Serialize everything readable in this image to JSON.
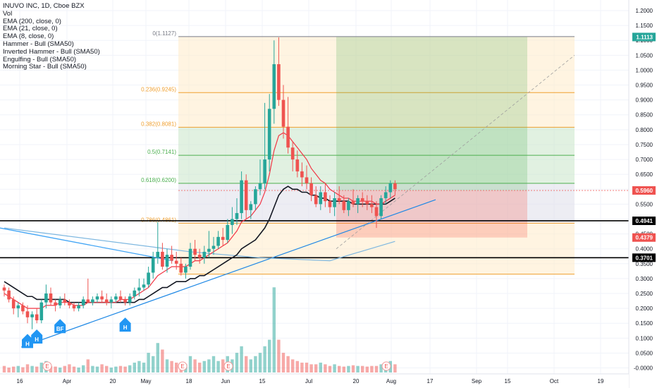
{
  "legend": {
    "title": "INUVO INC, 1D, Cboe BZX",
    "items": [
      "Vol",
      "EMA (200, close, 0)",
      "EMA (21, close, 0)",
      "EMA (8, close, 0)",
      "Hammer - Bull (SMA50)",
      "Inverted Hammer - Bull (SMA50)",
      "Engulfing - Bull (SMA50)",
      "Morning Star - Bull (SMA50)"
    ]
  },
  "colors": {
    "up": "#26a69a",
    "down": "#ef5350",
    "ema8": "#f23645",
    "ema21": "#131722",
    "ema200": "#7fb8e0",
    "trendline": "#2962ff",
    "fib_line": "#f0a030",
    "profit": "#4caf50",
    "loss": "#f44336",
    "marker": "#2196f3"
  },
  "chart_data": {
    "type": "candlestick",
    "title": "INUVO INC, 1D, Cboe BZX",
    "ylim": [
      -0.02,
      1.22
    ],
    "y_ticks": [
      "1.2000",
      "1.1500",
      "1.1000",
      "1.0500",
      "1.0000",
      "0.9500",
      "0.9000",
      "0.8500",
      "0.8000",
      "0.7500",
      "0.7000",
      "0.6500",
      "0.6000",
      "0.5500",
      "0.5000",
      "0.4500",
      "0.4000",
      "0.3500",
      "0.3000",
      "0.2500",
      "0.2000",
      "0.1500",
      "0.1000",
      "0.0500",
      "0.0000"
    ],
    "x_ticks": [
      "16",
      "Apr",
      "20",
      "May",
      "18",
      "Jun",
      "15",
      "Jul",
      "20",
      "Aug",
      "17",
      "Sep",
      "15",
      "Oct",
      "19"
    ],
    "ohlc": [
      [
        0.27,
        0.28,
        0.24,
        0.26
      ],
      [
        0.26,
        0.27,
        0.22,
        0.23
      ],
      [
        0.23,
        0.24,
        0.18,
        0.2
      ],
      [
        0.2,
        0.22,
        0.17,
        0.21
      ],
      [
        0.21,
        0.22,
        0.18,
        0.19
      ],
      [
        0.19,
        0.21,
        0.15,
        0.17
      ],
      [
        0.17,
        0.19,
        0.13,
        0.18
      ],
      [
        0.18,
        0.2,
        0.15,
        0.16
      ],
      [
        0.16,
        0.23,
        0.15,
        0.22
      ],
      [
        0.22,
        0.28,
        0.2,
        0.25
      ],
      [
        0.25,
        0.27,
        0.21,
        0.22
      ],
      [
        0.22,
        0.23,
        0.19,
        0.21
      ],
      [
        0.21,
        0.24,
        0.2,
        0.23
      ],
      [
        0.23,
        0.25,
        0.21,
        0.22
      ],
      [
        0.22,
        0.23,
        0.2,
        0.21
      ],
      [
        0.21,
        0.22,
        0.19,
        0.2
      ],
      [
        0.2,
        0.22,
        0.19,
        0.21
      ],
      [
        0.21,
        0.24,
        0.2,
        0.23
      ],
      [
        0.23,
        0.3,
        0.22,
        0.22
      ],
      [
        0.22,
        0.24,
        0.21,
        0.23
      ],
      [
        0.23,
        0.25,
        0.22,
        0.24
      ],
      [
        0.24,
        0.26,
        0.22,
        0.23
      ],
      [
        0.23,
        0.25,
        0.21,
        0.22
      ],
      [
        0.22,
        0.24,
        0.2,
        0.23
      ],
      [
        0.23,
        0.25,
        0.22,
        0.24
      ],
      [
        0.24,
        0.26,
        0.22,
        0.23
      ],
      [
        0.23,
        0.24,
        0.21,
        0.22
      ],
      [
        0.22,
        0.25,
        0.21,
        0.24
      ],
      [
        0.24,
        0.27,
        0.23,
        0.26
      ],
      [
        0.26,
        0.3,
        0.24,
        0.27
      ],
      [
        0.27,
        0.3,
        0.26,
        0.28
      ],
      [
        0.28,
        0.34,
        0.27,
        0.32
      ],
      [
        0.32,
        0.39,
        0.3,
        0.37
      ],
      [
        0.37,
        0.49,
        0.35,
        0.39
      ],
      [
        0.39,
        0.42,
        0.33,
        0.34
      ],
      [
        0.34,
        0.4,
        0.32,
        0.38
      ],
      [
        0.38,
        0.41,
        0.35,
        0.36
      ],
      [
        0.36,
        0.39,
        0.33,
        0.35
      ],
      [
        0.35,
        0.37,
        0.31,
        0.32
      ],
      [
        0.32,
        0.35,
        0.3,
        0.34
      ],
      [
        0.34,
        0.42,
        0.33,
        0.4
      ],
      [
        0.4,
        0.43,
        0.36,
        0.38
      ],
      [
        0.38,
        0.4,
        0.35,
        0.37
      ],
      [
        0.37,
        0.41,
        0.35,
        0.39
      ],
      [
        0.39,
        0.46,
        0.37,
        0.4
      ],
      [
        0.4,
        0.44,
        0.38,
        0.41
      ],
      [
        0.41,
        0.46,
        0.4,
        0.44
      ],
      [
        0.44,
        0.47,
        0.41,
        0.43
      ],
      [
        0.43,
        0.5,
        0.42,
        0.48
      ],
      [
        0.48,
        0.54,
        0.45,
        0.5
      ],
      [
        0.5,
        0.57,
        0.48,
        0.52
      ],
      [
        0.52,
        0.66,
        0.5,
        0.63
      ],
      [
        0.63,
        0.65,
        0.5,
        0.53
      ],
      [
        0.53,
        0.56,
        0.5,
        0.55
      ],
      [
        0.55,
        0.61,
        0.53,
        0.6
      ],
      [
        0.6,
        0.7,
        0.58,
        0.62
      ],
      [
        0.62,
        0.89,
        0.6,
        0.7
      ],
      [
        0.7,
        0.92,
        0.66,
        0.87
      ],
      [
        0.87,
        1.1,
        0.82,
        1.02
      ],
      [
        1.02,
        1.11,
        0.88,
        0.9
      ],
      [
        0.9,
        0.95,
        0.77,
        0.81
      ],
      [
        0.81,
        0.91,
        0.72,
        0.74
      ],
      [
        0.74,
        0.76,
        0.66,
        0.7
      ],
      [
        0.7,
        0.73,
        0.64,
        0.66
      ],
      [
        0.66,
        0.69,
        0.61,
        0.64
      ],
      [
        0.64,
        0.68,
        0.6,
        0.62
      ],
      [
        0.62,
        0.64,
        0.56,
        0.58
      ],
      [
        0.58,
        0.61,
        0.54,
        0.55
      ],
      [
        0.55,
        0.61,
        0.53,
        0.59
      ],
      [
        0.59,
        0.62,
        0.54,
        0.56
      ],
      [
        0.56,
        0.58,
        0.52,
        0.54
      ],
      [
        0.54,
        0.59,
        0.51,
        0.57
      ],
      [
        0.57,
        0.61,
        0.55,
        0.56
      ],
      [
        0.56,
        0.58,
        0.52,
        0.53
      ],
      [
        0.53,
        0.57,
        0.51,
        0.56
      ],
      [
        0.56,
        0.6,
        0.54,
        0.55
      ],
      [
        0.55,
        0.58,
        0.52,
        0.57
      ],
      [
        0.57,
        0.59,
        0.54,
        0.56
      ],
      [
        0.56,
        0.58,
        0.53,
        0.55
      ],
      [
        0.55,
        0.58,
        0.52,
        0.54
      ],
      [
        0.54,
        0.56,
        0.47,
        0.51
      ],
      [
        0.51,
        0.58,
        0.5,
        0.57
      ],
      [
        0.57,
        0.61,
        0.55,
        0.59
      ],
      [
        0.59,
        0.63,
        0.57,
        0.62
      ],
      [
        0.62,
        0.63,
        0.58,
        0.6
      ]
    ],
    "ema8": [
      0.25,
      0.24,
      0.23,
      0.22,
      0.21,
      0.2,
      0.2,
      0.2,
      0.2,
      0.21,
      0.21,
      0.21,
      0.22,
      0.22,
      0.22,
      0.21,
      0.21,
      0.21,
      0.22,
      0.22,
      0.22,
      0.22,
      0.22,
      0.22,
      0.22,
      0.23,
      0.23,
      0.23,
      0.24,
      0.25,
      0.26,
      0.27,
      0.29,
      0.31,
      0.32,
      0.33,
      0.34,
      0.34,
      0.34,
      0.34,
      0.35,
      0.36,
      0.36,
      0.37,
      0.38,
      0.39,
      0.4,
      0.41,
      0.42,
      0.44,
      0.46,
      0.49,
      0.5,
      0.51,
      0.53,
      0.55,
      0.59,
      0.65,
      0.73,
      0.78,
      0.79,
      0.78,
      0.76,
      0.74,
      0.72,
      0.7,
      0.67,
      0.65,
      0.63,
      0.62,
      0.6,
      0.59,
      0.58,
      0.57,
      0.57,
      0.56,
      0.56,
      0.56,
      0.56,
      0.56,
      0.55,
      0.55,
      0.56,
      0.57,
      0.58
    ],
    "ema21": [
      0.29,
      0.28,
      0.27,
      0.26,
      0.25,
      0.24,
      0.24,
      0.23,
      0.23,
      0.23,
      0.23,
      0.23,
      0.23,
      0.23,
      0.22,
      0.22,
      0.22,
      0.22,
      0.22,
      0.22,
      0.22,
      0.22,
      0.22,
      0.22,
      0.22,
      0.22,
      0.22,
      0.22,
      0.22,
      0.23,
      0.23,
      0.24,
      0.25,
      0.26,
      0.27,
      0.27,
      0.28,
      0.29,
      0.29,
      0.29,
      0.3,
      0.3,
      0.31,
      0.31,
      0.32,
      0.33,
      0.34,
      0.35,
      0.36,
      0.37,
      0.38,
      0.4,
      0.41,
      0.42,
      0.43,
      0.45,
      0.47,
      0.5,
      0.54,
      0.58,
      0.6,
      0.61,
      0.6,
      0.6,
      0.59,
      0.59,
      0.58,
      0.58,
      0.57,
      0.57,
      0.56,
      0.56,
      0.56,
      0.56,
      0.56,
      0.55,
      0.55,
      0.55,
      0.55,
      0.55,
      0.55,
      0.55,
      0.55,
      0.56,
      0.57
    ],
    "ema200": [
      [
        0,
        0.47
      ],
      [
        25,
        0.42
      ],
      [
        40,
        0.39
      ],
      [
        55,
        0.37
      ],
      [
        70,
        0.36
      ],
      [
        84,
        0.425
      ]
    ],
    "volume": [
      0.02,
      0.015,
      0.018,
      0.02,
      0.016,
      0.025,
      0.02,
      0.018,
      0.03,
      0.035,
      0.02,
      0.018,
      0.015,
      0.02,
      0.025,
      0.018,
      0.015,
      0.022,
      0.04,
      0.02,
      0.018,
      0.025,
      0.02,
      0.015,
      0.018,
      0.02,
      0.018,
      0.022,
      0.03,
      0.035,
      0.03,
      0.06,
      0.05,
      0.09,
      0.07,
      0.04,
      0.035,
      0.03,
      0.03,
      0.025,
      0.05,
      0.04,
      0.03,
      0.035,
      0.04,
      0.05,
      0.035,
      0.04,
      0.05,
      0.04,
      0.06,
      0.08,
      0.05,
      0.04,
      0.05,
      0.06,
      0.08,
      0.1,
      0.26,
      0.1,
      0.06,
      0.05,
      0.04,
      0.035,
      0.03,
      0.03,
      0.025,
      0.025,
      0.03,
      0.025,
      0.02,
      0.025,
      0.02,
      0.018,
      0.02,
      0.022,
      0.02,
      0.02,
      0.018,
      0.02,
      0.02,
      0.025,
      0.03,
      0.035,
      0.025
    ],
    "volume_scale_max": 0.28,
    "fib_levels": [
      {
        "label": "0(1.1127)",
        "value": 1.1127
      },
      {
        "label": "0.236(0.9245)",
        "value": 0.9245
      },
      {
        "label": "0.382(0.8081)",
        "value": 0.8081
      },
      {
        "label": "0.5(0.7141)",
        "value": 0.7141
      },
      {
        "label": "0.618(0.6200)",
        "value": 0.62
      },
      {
        "label": "0.786(0.4861)",
        "value": 0.4861
      }
    ],
    "fib_bottom": 0.315,
    "position": {
      "entry": 0.596,
      "target": 1.1113,
      "stop": 0.4379
    },
    "horizontal_lines": [
      0.4941,
      0.3701
    ],
    "current_price": 0.596,
    "price_labels": [
      {
        "text": "1.1113",
        "value": 1.1113,
        "color": "#26a69a"
      },
      {
        "text": "0.5960",
        "value": 0.596,
        "color": "#ef5350"
      },
      {
        "text": "0.4941",
        "value": 0.4941,
        "color": "#000000"
      },
      {
        "text": "0.4379",
        "value": 0.4379,
        "color": "#ef5350"
      },
      {
        "text": "0.3701",
        "value": 0.3701,
        "color": "#000000"
      }
    ],
    "markers": [
      {
        "label": "H",
        "index": 5,
        "value": 0.1
      },
      {
        "label": "H",
        "index": 7,
        "value": 0.115
      },
      {
        "label": "BF",
        "index": 12,
        "value": 0.15
      },
      {
        "label": "H",
        "index": 26,
        "value": 0.155
      }
    ],
    "earnings": [
      "E",
      "E",
      "E",
      "E"
    ]
  }
}
